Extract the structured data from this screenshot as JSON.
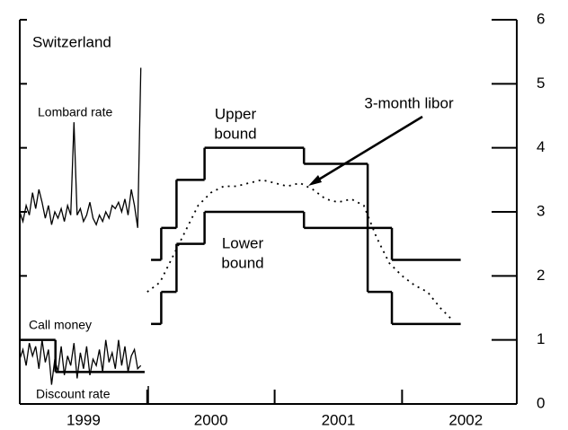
{
  "chart_data": {
    "type": "line",
    "title": "Switzerland",
    "xlim": [
      1999,
      2002.9
    ],
    "xticks": [
      2000,
      2001,
      2002
    ],
    "year_labels": [
      {
        "value": 1999.5,
        "label": "1999"
      },
      {
        "value": 2000.5,
        "label": "2000"
      },
      {
        "value": 2001.5,
        "label": "2001"
      },
      {
        "value": 2002.5,
        "label": "2002"
      }
    ],
    "ylim": [
      0,
      6
    ],
    "yticks": [
      0,
      1,
      2,
      3,
      4,
      5,
      6
    ],
    "annotations": {
      "upper": [
        "Upper",
        "bound"
      ],
      "lower": [
        "Lower",
        "bound"
      ],
      "libor": "3-month libor",
      "lombard": "Lombard rate",
      "call": "Call money",
      "discount": "Discount rate"
    },
    "series": [
      {
        "name": "Upper bound",
        "color": "#000",
        "style": "step",
        "x": [
          2000.03,
          2000.11,
          2000.23,
          2000.45,
          2001.23,
          2001.73,
          2001.92,
          2002.46
        ],
        "values": [
          2.25,
          2.75,
          3.5,
          4,
          3.75,
          2.75,
          2.25,
          2.25
        ]
      },
      {
        "name": "Lower bound",
        "color": "#000",
        "style": "step",
        "x": [
          2000.03,
          2000.11,
          2000.23,
          2000.45,
          2001.23,
          2001.73,
          2001.92,
          2002.46
        ],
        "values": [
          1.25,
          1.75,
          2.5,
          3,
          2.75,
          1.75,
          1.25,
          1.25
        ]
      },
      {
        "name": "3-month libor",
        "color": "#000",
        "style": "dotted",
        "x": [
          2000.0,
          2000.1,
          2000.2,
          2000.3,
          2000.4,
          2000.5,
          2000.6,
          2000.7,
          2000.8,
          2000.9,
          2001.0,
          2001.1,
          2001.2,
          2001.3,
          2001.4,
          2001.5,
          2001.6,
          2001.7,
          2001.8,
          2001.9,
          2002.0,
          2002.1,
          2002.2,
          2002.3,
          2002.4
        ],
        "values": [
          1.75,
          1.9,
          2.3,
          2.7,
          3.1,
          3.3,
          3.4,
          3.4,
          3.45,
          3.5,
          3.45,
          3.4,
          3.45,
          3.35,
          3.2,
          3.15,
          3.2,
          3.1,
          2.6,
          2.2,
          2.0,
          1.85,
          1.75,
          1.5,
          1.3
        ]
      },
      {
        "name": "Lombard rate",
        "color": "#000",
        "style": "thin",
        "x": [
          1999.0,
          1999.025,
          1999.05,
          1999.075,
          1999.1,
          1999.125,
          1999.15,
          1999.175,
          1999.2,
          1999.225,
          1999.25,
          1999.275,
          1999.3,
          1999.325,
          1999.35,
          1999.375,
          1999.4,
          1999.425,
          1999.45,
          1999.475,
          1999.5,
          1999.525,
          1999.55,
          1999.575,
          1999.6,
          1999.625,
          1999.65,
          1999.675,
          1999.7,
          1999.725,
          1999.75,
          1999.775,
          1999.8,
          1999.825,
          1999.85,
          1999.875,
          1999.9,
          1999.925,
          1999.95
        ],
        "values": [
          3.0,
          2.85,
          3.1,
          2.95,
          3.3,
          3.05,
          3.35,
          3.15,
          2.9,
          3.1,
          2.8,
          3.0,
          2.9,
          3.05,
          2.85,
          3.1,
          2.95,
          4.4,
          2.95,
          3.05,
          2.85,
          2.95,
          3.15,
          2.9,
          2.8,
          2.95,
          2.85,
          3.0,
          2.9,
          3.1,
          3.05,
          3.15,
          3.0,
          3.2,
          2.95,
          3.35,
          3.1,
          2.75,
          5.25
        ]
      },
      {
        "name": "Call money",
        "color": "#000",
        "style": "thin",
        "x": [
          1999.0,
          1999.025,
          1999.05,
          1999.075,
          1999.1,
          1999.125,
          1999.15,
          1999.175,
          1999.2,
          1999.225,
          1999.25,
          1999.275,
          1999.3,
          1999.325,
          1999.35,
          1999.375,
          1999.4,
          1999.425,
          1999.45,
          1999.475,
          1999.5,
          1999.525,
          1999.55,
          1999.575,
          1999.6,
          1999.625,
          1999.65,
          1999.675,
          1999.7,
          1999.725,
          1999.75,
          1999.775,
          1999.8,
          1999.825,
          1999.85,
          1999.875,
          1999.9,
          1999.925,
          1999.95
        ],
        "values": [
          0.7,
          0.85,
          0.6,
          0.95,
          0.75,
          0.9,
          0.55,
          1.0,
          0.65,
          0.85,
          0.3,
          0.7,
          0.5,
          0.9,
          0.45,
          0.75,
          0.6,
          0.95,
          0.4,
          0.8,
          0.55,
          0.9,
          0.45,
          0.7,
          0.6,
          0.85,
          0.5,
          1.0,
          0.65,
          0.8,
          0.55,
          1.0,
          0.6,
          0.9,
          0.5,
          0.75,
          0.85,
          0.55,
          0.6
        ]
      },
      {
        "name": "Discount rate",
        "color": "#000",
        "style": "step",
        "x": [
          1999.0,
          1999.28,
          1999.98
        ],
        "values": [
          1.0,
          0.5,
          0.5
        ]
      }
    ]
  }
}
